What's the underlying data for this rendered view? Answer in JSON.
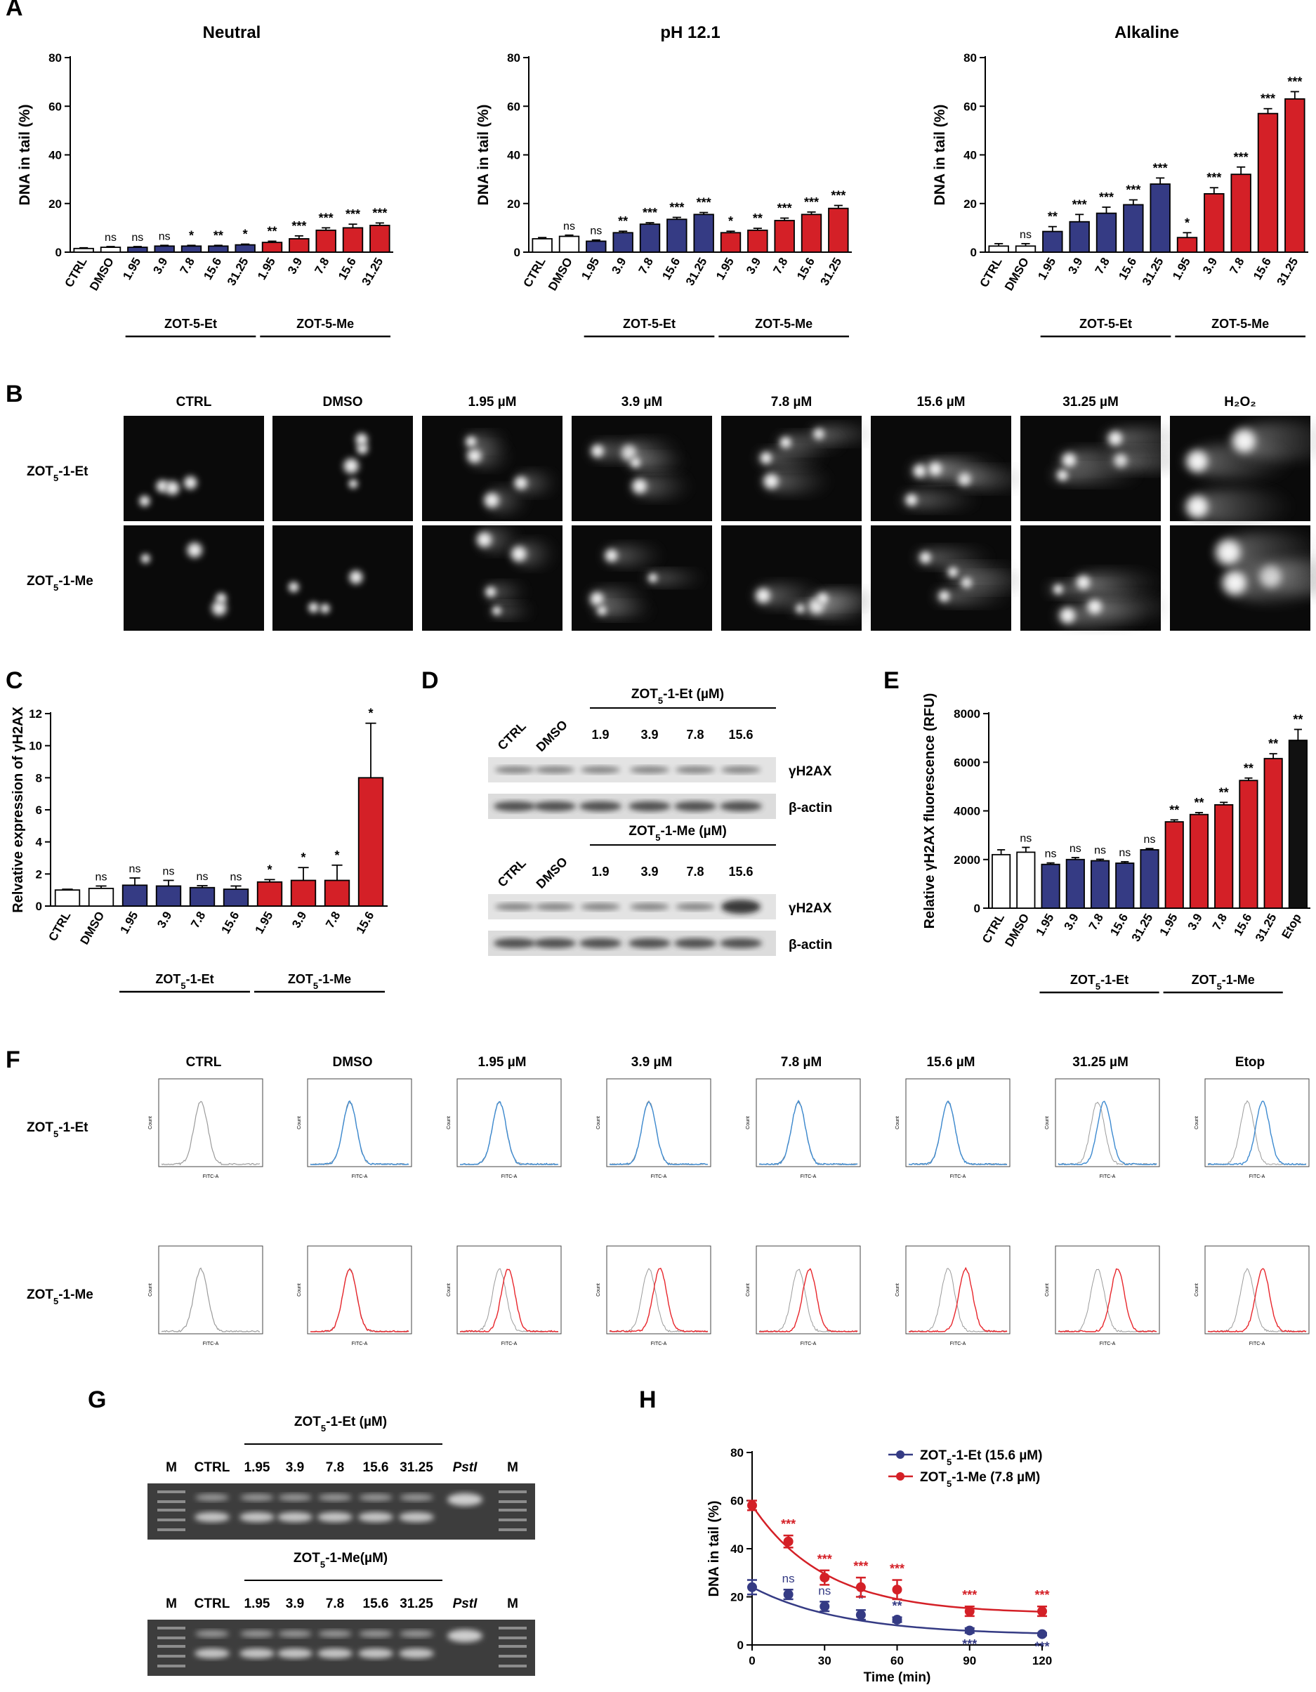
{
  "colors": {
    "blue": "#353b84",
    "red": "#d42027",
    "black": "#111111",
    "white": "#ffffff",
    "flow_blue": "#3d8ad0",
    "flow_red": "#e8262c",
    "flow_gray": "#9b9b9b"
  },
  "panels": {
    "A": {
      "label": "A",
      "charts": [
        {
          "type": "bar",
          "title": "Neutral",
          "ylabel": "DNA in tail (%)",
          "ylim": [
            0,
            80
          ],
          "yticks": [
            0,
            20,
            40,
            60,
            80
          ],
          "categories": [
            "CTRL",
            "DMSO",
            "1.95",
            "3.9",
            "7.8",
            "15.6",
            "31.25",
            "1.95",
            "3.9",
            "7.8",
            "15.6",
            "31.25"
          ],
          "values": [
            1.5,
            2,
            2,
            2.5,
            2.5,
            2.5,
            3,
            4,
            5.5,
            9,
            10,
            11
          ],
          "errors": [
            0.3,
            0.3,
            0.3,
            0.3,
            0.3,
            0.3,
            0.3,
            0.5,
            1.2,
            1,
            1.5,
            1
          ],
          "colors": [
            "white",
            "white",
            "blue",
            "blue",
            "blue",
            "blue",
            "blue",
            "red",
            "red",
            "red",
            "red",
            "red"
          ],
          "sig": [
            "",
            "ns",
            "ns",
            "ns",
            "*",
            "**",
            "*",
            "**",
            "***",
            "***",
            "***",
            "***"
          ],
          "groups": [
            "ZOT-5-Et",
            "ZOT-5-Me"
          ]
        },
        {
          "type": "bar",
          "title": "pH 12.1",
          "ylabel": "DNA in tail (%)",
          "ylim": [
            0,
            80
          ],
          "yticks": [
            0,
            20,
            40,
            60,
            80
          ],
          "categories": [
            "CTRL",
            "DMSO",
            "1.95",
            "3.9",
            "7.8",
            "15.6",
            "31.25",
            "1.95",
            "3.9",
            "7.8",
            "15.6",
            "31.25"
          ],
          "values": [
            5.5,
            6.5,
            4.5,
            8,
            11.5,
            13.5,
            15.5,
            8,
            9,
            13,
            15.5,
            18
          ],
          "errors": [
            0.5,
            0.5,
            0.5,
            0.6,
            0.6,
            0.8,
            0.8,
            0.6,
            0.8,
            1,
            1,
            1.2
          ],
          "colors": [
            "white",
            "white",
            "blue",
            "blue",
            "blue",
            "blue",
            "blue",
            "red",
            "red",
            "red",
            "red",
            "red"
          ],
          "sig": [
            "",
            "ns",
            "ns",
            "**",
            "***",
            "***",
            "***",
            "*",
            "**",
            "***",
            "***",
            "***"
          ],
          "groups": [
            "ZOT-5-Et",
            "ZOT-5-Me"
          ]
        },
        {
          "type": "bar",
          "title": "Alkaline",
          "ylabel": "DNA in tail (%)",
          "ylim": [
            0,
            80
          ],
          "yticks": [
            0,
            20,
            40,
            60,
            80
          ],
          "categories": [
            "CTRL",
            "DMSO",
            "1.95",
            "3.9",
            "7.8",
            "15.6",
            "31.25",
            "1.95",
            "3.9",
            "7.8",
            "15.6",
            "31.25"
          ],
          "values": [
            2.5,
            2.5,
            8.5,
            12.5,
            16,
            19.5,
            28,
            6,
            24,
            32,
            57,
            63
          ],
          "errors": [
            1,
            1,
            2,
            3,
            2.5,
            2,
            2.5,
            2,
            2.5,
            3,
            2,
            3
          ],
          "colors": [
            "white",
            "white",
            "blue",
            "blue",
            "blue",
            "blue",
            "blue",
            "red",
            "red",
            "red",
            "red",
            "red"
          ],
          "sig": [
            "",
            "ns",
            "**",
            "***",
            "***",
            "***",
            "***",
            "*",
            "***",
            "***",
            "***",
            "***"
          ],
          "groups": [
            "ZOT-5-Et",
            "ZOT-5-Me"
          ]
        }
      ]
    },
    "B": {
      "label": "B",
      "columns": [
        "CTRL",
        "DMSO",
        "1.95 µM",
        "3.9 µM",
        "7.8 µM",
        "15.6 µM",
        "31.25 µM",
        "H₂O₂"
      ],
      "rows": [
        {
          "pre": "ZOT",
          "sub": "5",
          "post": "-1-Et"
        },
        {
          "pre": "ZOT",
          "sub": "5",
          "post": "-1-Me"
        }
      ]
    },
    "C": {
      "label": "C",
      "chart": {
        "type": "bar",
        "title": "",
        "ylabel": "Relvative expression of γH2AX",
        "ylim": [
          0,
          12
        ],
        "yticks": [
          0,
          2,
          4,
          6,
          8,
          10,
          12
        ],
        "categories": [
          "CTRL",
          "DMSO",
          "1.95",
          "3.9",
          "7.8",
          "15.6",
          "1.95",
          "3.9",
          "7.8",
          "15.6"
        ],
        "values": [
          1,
          1.1,
          1.3,
          1.25,
          1.15,
          1.05,
          1.5,
          1.6,
          1.6,
          8
        ],
        "errors": [
          0.05,
          0.15,
          0.45,
          0.35,
          0.12,
          0.2,
          0.15,
          0.8,
          0.95,
          3.4
        ],
        "colors": [
          "white",
          "white",
          "blue",
          "blue",
          "blue",
          "blue",
          "red",
          "red",
          "red",
          "red"
        ],
        "sig": [
          "",
          "ns",
          "ns",
          "ns",
          "ns",
          "ns",
          "*",
          "*",
          "*",
          "*"
        ],
        "groups": [
          {
            "pre": "ZOT",
            "sub": "5",
            "post": "-1-Et"
          },
          {
            "pre": "ZOT",
            "sub": "5",
            "post": "-1-Me"
          }
        ]
      }
    },
    "D": {
      "label": "D",
      "blots": [
        {
          "title": {
            "pre": "ZOT",
            "sub": "5",
            "post": "-1-Et (µM)"
          },
          "lanes": [
            "CTRL",
            "DMSO",
            "1.9",
            "3.9",
            "7.8",
            "15.6"
          ],
          "bands": [
            "γH2AX",
            "β-actin"
          ]
        },
        {
          "title": {
            "pre": "ZOT",
            "sub": "5",
            "post": "-1-Me (µM)"
          },
          "lanes": [
            "CTRL",
            "DMSO",
            "1.9",
            "3.9",
            "7.8",
            "15.6"
          ],
          "bands": [
            "γH2AX",
            "β-actin"
          ]
        }
      ]
    },
    "E": {
      "label": "E",
      "chart": {
        "type": "bar",
        "title": "",
        "ylabel": "Relative γH2AX fluorescence (RFU)",
        "ylim": [
          0,
          8000
        ],
        "yticks": [
          0,
          2000,
          4000,
          6000,
          8000
        ],
        "categories": [
          "CTRL",
          "DMSO",
          "1.95",
          "3.9",
          "7.8",
          "15.6",
          "31.25",
          "1.95",
          "3.9",
          "7.8",
          "15.6",
          "31.25",
          "Etop"
        ],
        "values": [
          2200,
          2300,
          1800,
          2000,
          1950,
          1850,
          2400,
          3550,
          3850,
          4250,
          5250,
          6150,
          6900
        ],
        "errors": [
          200,
          200,
          60,
          80,
          60,
          60,
          50,
          80,
          80,
          100,
          100,
          200,
          450
        ],
        "colors": [
          "white",
          "white",
          "blue",
          "blue",
          "blue",
          "blue",
          "blue",
          "red",
          "red",
          "red",
          "red",
          "red",
          "black"
        ],
        "sig": [
          "",
          "ns",
          "ns",
          "ns",
          "ns",
          "ns",
          "ns",
          "**",
          "**",
          "**",
          "**",
          "**",
          "**"
        ],
        "groups": [
          {
            "pre": "ZOT",
            "sub": "5",
            "post": "-1-Et"
          },
          {
            "pre": "ZOT",
            "sub": "5",
            "post": "-1-Me"
          }
        ]
      }
    },
    "F": {
      "label": "F",
      "columns": [
        "CTRL",
        "DMSO",
        "1.95 µM",
        "3.9 µM",
        "7.8 µM",
        "15.6 µM",
        "31.25 µM",
        "Etop"
      ],
      "rows": [
        {
          "pre": "ZOT",
          "sub": "5",
          "post": "-1-Et"
        },
        {
          "pre": "ZOT",
          "sub": "5",
          "post": "-1-Me"
        }
      ],
      "shifts": [
        [
          0,
          0,
          0,
          0,
          0,
          0,
          0.15,
          0.35
        ],
        [
          0,
          0,
          0.2,
          0.25,
          0.25,
          0.4,
          0.45,
          0.35
        ]
      ],
      "ylabel": "Count",
      "xlabel": "FITC-A"
    },
    "G": {
      "label": "G",
      "gels": [
        {
          "title": {
            "pre": "ZOT",
            "sub": "5",
            "post": "-1-Et (µM)"
          },
          "lanes": [
            "M",
            "CTRL",
            "1.95",
            "3.9",
            "7.8",
            "15.6",
            "31.25",
            "PstI",
            "M"
          ]
        },
        {
          "title": {
            "pre": "ZOT",
            "sub": "5",
            "post": "-1-Me(µM)"
          },
          "lanes": [
            "M",
            "CTRL",
            "1.95",
            "3.9",
            "7.8",
            "15.6",
            "31.25",
            "PstI",
            "M"
          ]
        }
      ]
    },
    "H": {
      "label": "H",
      "chart": {
        "type": "line",
        "xlabel": "Time (min)",
        "ylabel": "DNA in tail (%)",
        "xlim": [
          0,
          120
        ],
        "ylim": [
          0,
          80
        ],
        "xticks": [
          0,
          30,
          60,
          90,
          120
        ],
        "yticks": [
          0,
          20,
          40,
          60,
          80
        ],
        "series": [
          {
            "name": {
              "pre": "ZOT",
              "sub": "5",
              "post": "-1-Et (15.6 µM)"
            },
            "color": "blue",
            "x": [
              0,
              15,
              30,
              45,
              60,
              90,
              120
            ],
            "y": [
              24,
              21,
              16,
              12.5,
              10.5,
              6,
              4.5
            ],
            "err": [
              3,
              2,
              2,
              2,
              1,
              1,
              0.5
            ],
            "sig": [
              "",
              "ns",
              "ns",
              "*",
              "**",
              "***",
              "***"
            ]
          },
          {
            "name": {
              "pre": "ZOT",
              "sub": "5",
              "post": "-1-Me (7.8 µM)"
            },
            "color": "red",
            "x": [
              0,
              15,
              30,
              45,
              60,
              90,
              120
            ],
            "y": [
              58,
              43,
              28,
              24,
              23,
              14,
              14
            ],
            "err": [
              2,
              2.5,
              3,
              4,
              4,
              2,
              2
            ],
            "sig": [
              "",
              "***",
              "***",
              "***",
              "***",
              "***",
              "***"
            ]
          }
        ]
      }
    }
  }
}
